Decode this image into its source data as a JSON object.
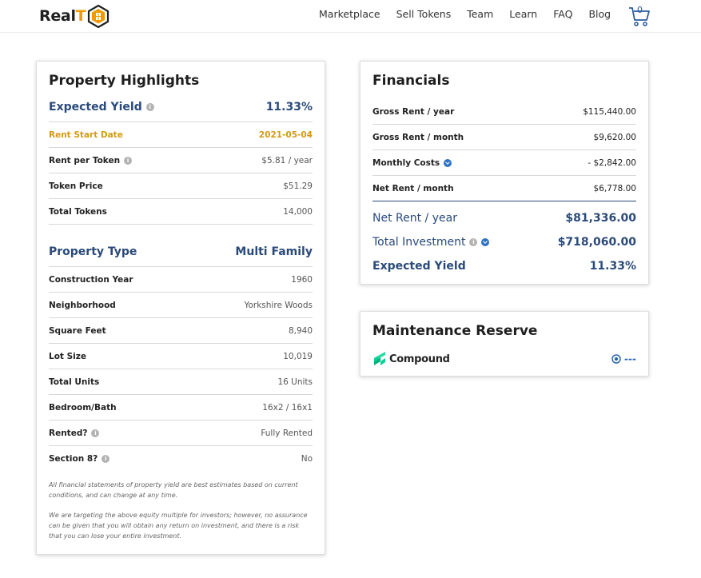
{
  "nav": {
    "logo_text_1": "Real",
    "logo_text_2": "T",
    "items": [
      "Marketplace",
      "Sell Tokens",
      "Team",
      "Learn",
      "FAQ",
      "Blog"
    ],
    "cart_count": "0",
    "logo_icon": "realt-house-icon",
    "cart_icon": "cart-icon"
  },
  "highlights": {
    "title": "Property Highlights",
    "expected_yield_label": "Expected Yield",
    "expected_yield_value": "11.33%",
    "rent_start_label": "Rent Start Date",
    "rent_start_value": "2021-05-04",
    "rows1": [
      {
        "label": "Rent per Token",
        "value": "$5.81 / year"
      },
      {
        "label": "Token Price",
        "value": "$51.29"
      },
      {
        "label": "Total Tokens",
        "value": "14,000"
      }
    ],
    "property_type_label": "Property Type",
    "property_type_value": "Multi Family",
    "rows2": [
      {
        "label": "Construction Year",
        "value": "1960"
      },
      {
        "label": "Neighborhood",
        "value": "Yorkshire Woods"
      },
      {
        "label": "Square Feet",
        "value": "8,940"
      },
      {
        "label": "Lot Size",
        "value": "10,019"
      },
      {
        "label": "Total Units",
        "value": "16 Units"
      },
      {
        "label": "Bedroom/Bath",
        "value": "16x2 / 16x1"
      },
      {
        "label": "Rented?",
        "value": "Fully Rented"
      },
      {
        "label": "Section 8?",
        "value": "No"
      }
    ],
    "disclaimer_1": "All financial statements of property yield are best estimates based on current conditions, and can change at any time.",
    "disclaimer_2": "We are targeting the above equity multiple for investors; however, no assurance can be given that you will obtain any return on investment, and there is a risk that you can lose your entire investment."
  },
  "financials": {
    "title": "Financials",
    "rows": [
      {
        "label": "Gross Rent / year",
        "value": "$115,440.00"
      },
      {
        "label": "Gross Rent / month",
        "value": "$9,620.00"
      },
      {
        "label": "Monthly Costs",
        "value": "- $2,842.00"
      },
      {
        "label": "Net Rent / month",
        "value": "$6,778.00"
      }
    ],
    "big": [
      {
        "label": "Net Rent / year",
        "value": "$81,336.00"
      },
      {
        "label": "Total Investment",
        "value": "$718,060.00"
      },
      {
        "label": "Expected Yield",
        "value": "11.33%"
      }
    ]
  },
  "maintenance": {
    "title": "Maintenance Reserve",
    "provider": "Compound",
    "value": "---"
  },
  "colors": {
    "accent_blue": "#2a4a7a",
    "gold": "#d49a10",
    "compound_green": "#00d395"
  }
}
